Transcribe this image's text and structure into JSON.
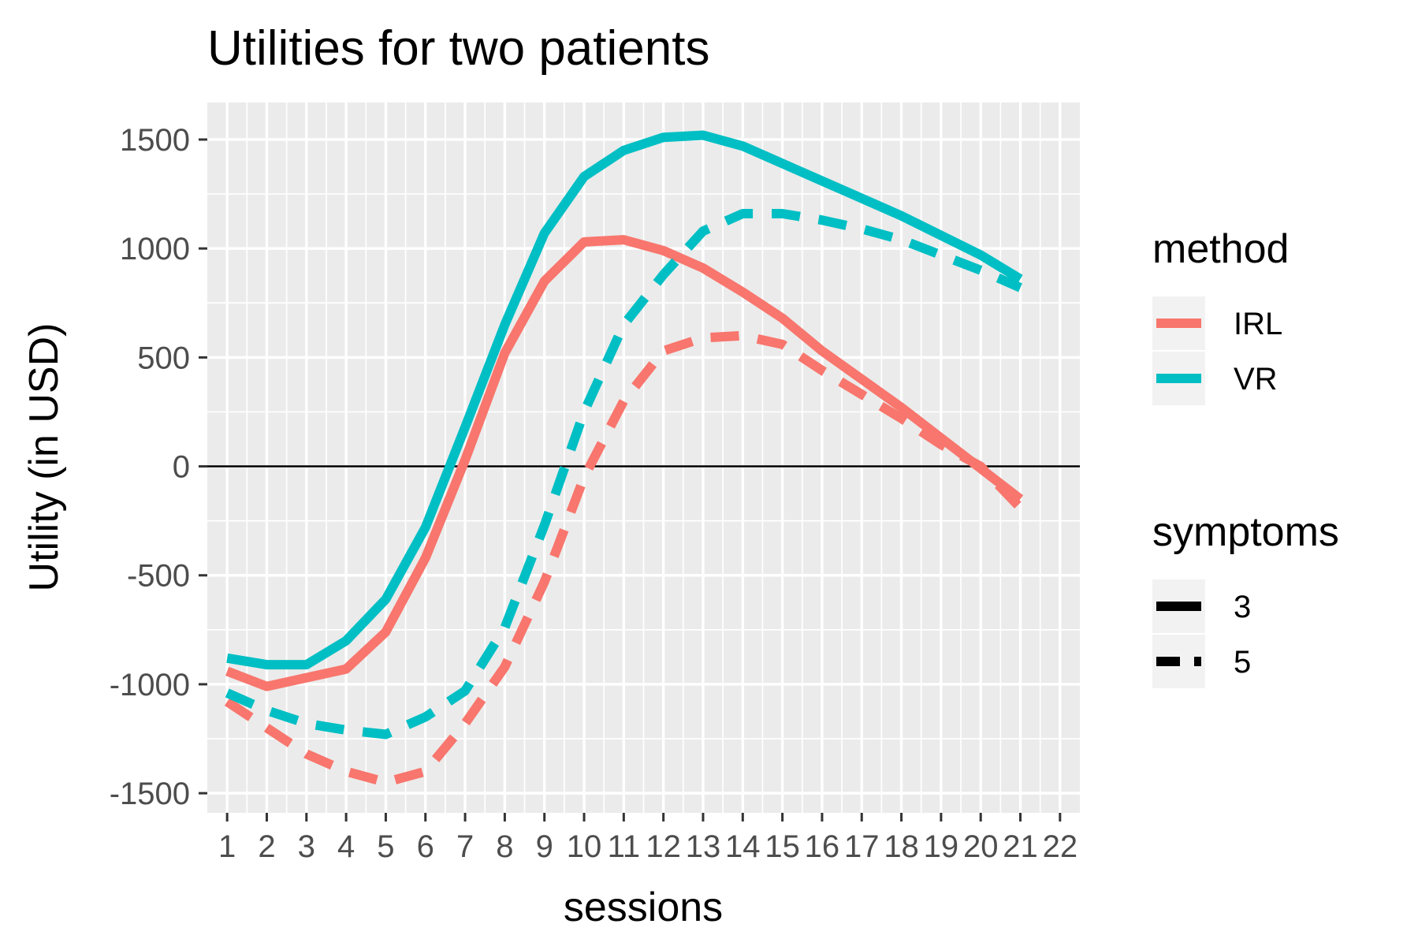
{
  "chart_data": {
    "type": "line",
    "title": "Utilities for two patients",
    "xlabel": "sessions",
    "ylabel": "Utility (in USD)",
    "x": [
      1,
      2,
      3,
      4,
      5,
      6,
      7,
      8,
      9,
      10,
      11,
      12,
      13,
      14,
      15,
      16,
      17,
      18,
      19,
      20,
      21
    ],
    "x_ticks": [
      1,
      2,
      3,
      4,
      5,
      6,
      7,
      8,
      9,
      10,
      11,
      12,
      13,
      14,
      15,
      16,
      17,
      18,
      19,
      20,
      21,
      22
    ],
    "xlim": [
      0.5,
      22.5
    ],
    "y_ticks": [
      -1500,
      -1000,
      -500,
      0,
      500,
      1000,
      1500
    ],
    "ylim": [
      -1590,
      1670
    ],
    "grid": true,
    "reference_line_y": 0,
    "legend_placement": "right",
    "legends": [
      {
        "title": "method",
        "entries": [
          {
            "label": "IRL",
            "color": "#F8766D"
          },
          {
            "label": "VR",
            "color": "#00BFC4"
          }
        ]
      },
      {
        "title": "symptoms",
        "entries": [
          {
            "label": "3",
            "linetype": "solid"
          },
          {
            "label": "5",
            "linetype": "dashed"
          }
        ]
      }
    ],
    "series": [
      {
        "method": "IRL",
        "symptoms": "3",
        "color": "#F8766D",
        "linetype": "solid",
        "values": [
          -940,
          -1010,
          -970,
          -930,
          -760,
          -420,
          30,
          520,
          850,
          1030,
          1040,
          990,
          910,
          800,
          680,
          530,
          400,
          270,
          130,
          -10,
          -150
        ]
      },
      {
        "method": "VR",
        "symptoms": "3",
        "color": "#00BFC4",
        "linetype": "solid",
        "values": [
          -880,
          -910,
          -910,
          -800,
          -610,
          -280,
          180,
          650,
          1070,
          1330,
          1450,
          1510,
          1520,
          1470,
          1390,
          1310,
          1230,
          1150,
          1060,
          970,
          860
        ]
      },
      {
        "method": "IRL",
        "symptoms": "5",
        "color": "#F8766D",
        "linetype": "dashed",
        "values": [
          -1080,
          -1200,
          -1320,
          -1400,
          -1450,
          -1400,
          -1180,
          -920,
          -530,
          -50,
          300,
          530,
          590,
          600,
          560,
          440,
          330,
          220,
          100,
          0,
          -190
        ]
      },
      {
        "method": "VR",
        "symptoms": "5",
        "color": "#00BFC4",
        "linetype": "dashed",
        "values": [
          -1040,
          -1120,
          -1180,
          -1210,
          -1230,
          -1150,
          -1030,
          -740,
          -270,
          250,
          650,
          880,
          1080,
          1160,
          1160,
          1130,
          1090,
          1040,
          970,
          900,
          820
        ]
      }
    ]
  }
}
